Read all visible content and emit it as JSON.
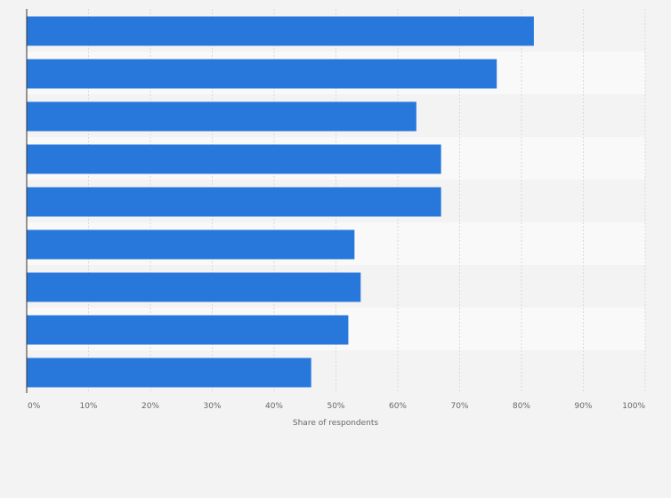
{
  "chart_data": {
    "type": "bar",
    "orientation": "horizontal",
    "categories": [
      "",
      "",
      "",
      "",
      "",
      "",
      "",
      "",
      ""
    ],
    "values": [
      82,
      76,
      63,
      67,
      67,
      53,
      54,
      52,
      46
    ],
    "xlabel": "Share of respondents",
    "ylabel": "",
    "xlim": [
      0,
      100
    ],
    "x_ticks": [
      0,
      10,
      20,
      30,
      40,
      50,
      60,
      70,
      80,
      90,
      100
    ],
    "x_tick_labels": [
      "0%",
      "10%",
      "20%",
      "30%",
      "40%",
      "50%",
      "60%",
      "70%",
      "80%",
      "90%",
      "100%"
    ],
    "grid": true,
    "legend": "none",
    "colors": {
      "bar": "#2878dc",
      "background": "#f3f3f3",
      "band_alt": "#f9f9f9",
      "grid": "#d9d9d9",
      "axis": "#333333",
      "text": "#666666"
    }
  }
}
